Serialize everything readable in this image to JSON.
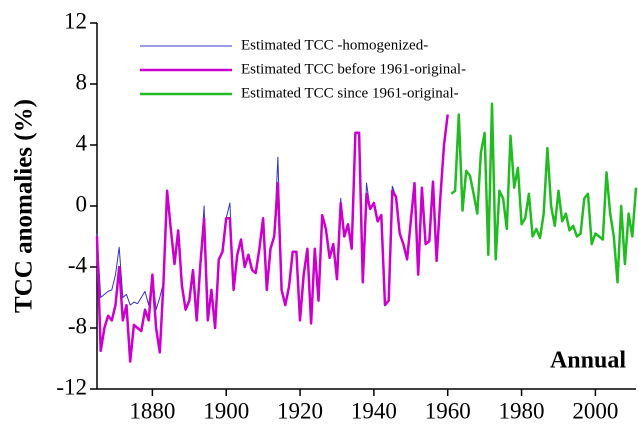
{
  "chart_data": {
    "type": "line",
    "y_label": "TCC anomalies (%)",
    "annotation": "Annual",
    "xlim": [
      1865,
      2011
    ],
    "ylim": [
      -12,
      12
    ],
    "xticks": [
      1880,
      1900,
      1920,
      1940,
      1960,
      1980,
      2000
    ],
    "yticks": [
      -12,
      -8,
      -4,
      0,
      4,
      8,
      12
    ],
    "legend": "upper left",
    "series": [
      {
        "name": "Estimated TCC -homogenized-",
        "color": "#3333cc",
        "width": 1,
        "x": [
          1865,
          1866,
          1867,
          1868,
          1869,
          1870,
          1871,
          1872,
          1873,
          1874,
          1875,
          1876,
          1877,
          1878,
          1879,
          1880,
          1881,
          1882,
          1883,
          1884,
          1885,
          1886,
          1887,
          1888,
          1889,
          1890,
          1891,
          1892,
          1893,
          1894,
          1895,
          1896,
          1897,
          1898,
          1899,
          1900,
          1901,
          1902,
          1903,
          1904,
          1905,
          1906,
          1907,
          1908,
          1909,
          1910,
          1911,
          1912,
          1913,
          1914,
          1915,
          1916,
          1917,
          1918,
          1919,
          1920,
          1921,
          1922,
          1923,
          1924,
          1925,
          1926,
          1927,
          1928,
          1929,
          1930,
          1931,
          1932,
          1933,
          1934,
          1935,
          1936,
          1937,
          1938,
          1939,
          1940,
          1941,
          1942,
          1943,
          1944,
          1945,
          1946,
          1947,
          1948,
          1949,
          1950,
          1951,
          1952,
          1953,
          1954,
          1955,
          1956,
          1957,
          1958,
          1959,
          1960
        ],
        "values": [
          -1.8,
          -6,
          -5.8,
          -5.6,
          -5.5,
          -4.5,
          -2.7,
          -6,
          -5.8,
          -6.5,
          -6.3,
          -6.4,
          -6,
          -5.6,
          -6.5,
          -4.5,
          -6.8,
          -6,
          -5,
          1,
          -1.5,
          -3.8,
          -1.6,
          -5.2,
          -6.8,
          -6.2,
          -4.2,
          -7.5,
          -3.8,
          0,
          -7.5,
          -5.5,
          -8,
          -3.5,
          -3,
          -0.8,
          0.2,
          -5.5,
          -3.2,
          -2.2,
          -4,
          -3.2,
          -4.2,
          -4.4,
          -2.8,
          -0.8,
          -5.5,
          -2.8,
          -2,
          3.2,
          -5.5,
          -6.5,
          -5.3,
          -3,
          -3,
          -7.5,
          -4.5,
          -2.8,
          -7.7,
          -2.8,
          -6.2,
          -0.6,
          -1.5,
          -3.4,
          -2.5,
          -4.8,
          0.5,
          -2,
          -1.2,
          -2.8,
          4.8,
          4.8,
          -5,
          1.5,
          -0.2,
          0.2,
          -1,
          -0.6,
          -6.5,
          -6.2,
          1.3,
          0.6,
          -1.8,
          -2.5,
          -3.5,
          -1,
          1.5,
          -4.5,
          1.2,
          -2.5,
          -2.3,
          1.6,
          -3.6,
          0.5,
          4,
          6
        ]
      },
      {
        "name": "Estimated TCC before 1961-original-",
        "color": "#cc00cc",
        "width": 2.5,
        "x": [
          1865,
          1866,
          1867,
          1868,
          1869,
          1870,
          1871,
          1872,
          1873,
          1874,
          1875,
          1876,
          1877,
          1878,
          1879,
          1880,
          1881,
          1882,
          1883,
          1884,
          1885,
          1886,
          1887,
          1888,
          1889,
          1890,
          1891,
          1892,
          1893,
          1894,
          1895,
          1896,
          1897,
          1898,
          1899,
          1900,
          1901,
          1902,
          1903,
          1904,
          1905,
          1906,
          1907,
          1908,
          1909,
          1910,
          1911,
          1912,
          1913,
          1914,
          1915,
          1916,
          1917,
          1918,
          1919,
          1920,
          1921,
          1922,
          1923,
          1924,
          1925,
          1926,
          1927,
          1928,
          1929,
          1930,
          1931,
          1932,
          1933,
          1934,
          1935,
          1936,
          1937,
          1938,
          1939,
          1940,
          1941,
          1942,
          1943,
          1944,
          1945,
          1946,
          1947,
          1948,
          1949,
          1950,
          1951,
          1952,
          1953,
          1954,
          1955,
          1956,
          1957,
          1958,
          1959,
          1960
        ],
        "values": [
          -2,
          -9.5,
          -8,
          -7.2,
          -7.5,
          -6.5,
          -4,
          -7.5,
          -6.5,
          -10.2,
          -7.8,
          -8,
          -8.2,
          -6.8,
          -7.5,
          -4.5,
          -8,
          -9.6,
          -5,
          1,
          -1.5,
          -3.8,
          -1.6,
          -5.2,
          -6.8,
          -6.2,
          -4.2,
          -7.5,
          -3.8,
          -0.8,
          -7.5,
          -5.5,
          -8,
          -3.5,
          -3,
          -0.8,
          -0.8,
          -5.5,
          -3.2,
          -2.2,
          -4,
          -3.2,
          -4.2,
          -4.4,
          -2.8,
          -0.8,
          -5.5,
          -2.8,
          -2,
          1.5,
          -5.5,
          -6.5,
          -5.3,
          -3,
          -3,
          -7.5,
          -4.5,
          -2.8,
          -7.7,
          -2.8,
          -6.2,
          -0.6,
          -1.5,
          -3.4,
          -2.5,
          -4.8,
          0.2,
          -2,
          -1.2,
          -2.8,
          4.8,
          4.8,
          -5,
          0.8,
          -0.2,
          0.2,
          -1,
          -0.6,
          -6.5,
          -6.2,
          1,
          0.6,
          -1.8,
          -2.5,
          -3.5,
          -1,
          1.5,
          -4.5,
          1.2,
          -2.5,
          -2.3,
          1.6,
          -3.6,
          0.5,
          4,
          6
        ]
      },
      {
        "name": "Estimated TCC since 1961-original-",
        "color": "#22bb22",
        "width": 2.5,
        "x": [
          1961,
          1962,
          1963,
          1964,
          1965,
          1966,
          1967,
          1968,
          1969,
          1970,
          1971,
          1972,
          1973,
          1974,
          1975,
          1976,
          1977,
          1978,
          1979,
          1980,
          1981,
          1982,
          1983,
          1984,
          1985,
          1986,
          1987,
          1988,
          1989,
          1990,
          1991,
          1992,
          1993,
          1994,
          1995,
          1996,
          1997,
          1998,
          1999,
          2000,
          2001,
          2002,
          2003,
          2004,
          2005,
          2006,
          2007,
          2008,
          2009,
          2010,
          2011
        ],
        "values": [
          0.8,
          1,
          6,
          -0.3,
          2.3,
          2,
          0.8,
          -0.5,
          3.5,
          4.8,
          -3.2,
          6.7,
          -3.5,
          1,
          0.5,
          -1.5,
          4.6,
          1.2,
          2.5,
          -1.2,
          -0.8,
          0.8,
          -2,
          -1.5,
          -2.1,
          -0.5,
          3.8,
          0,
          -1.3,
          1,
          -1,
          -0.5,
          -1.6,
          -1.3,
          -2,
          -1.8,
          0.5,
          0.8,
          -2.5,
          -1.8,
          -2,
          -2.2,
          2.2,
          -0.5,
          -2,
          -5,
          0,
          -3.8,
          -0.5,
          -2,
          1.2
        ]
      }
    ]
  }
}
